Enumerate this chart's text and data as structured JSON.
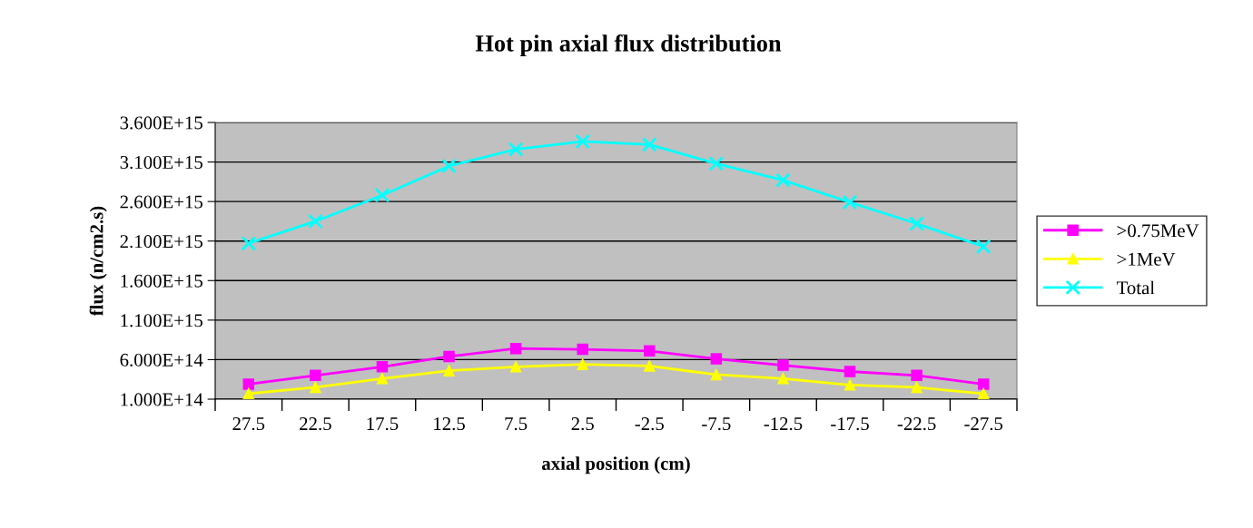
{
  "chart_data": {
    "type": "line",
    "title": "Hot pin axial flux distribution",
    "xlabel": "axial position (cm)",
    "ylabel": "flux (n/cm2.s)",
    "categories": [
      "27.5",
      "22.5",
      "17.5",
      "12.5",
      "7.5",
      "2.5",
      "-2.5",
      "-7.5",
      "-12.5",
      "-17.5",
      "-22.5",
      "-27.5"
    ],
    "series": [
      {
        "name": ">0.75MeV",
        "color": "#ff00ff",
        "marker": "square",
        "values": [
          290000000000000.0,
          400000000000000.0,
          510000000000000.0,
          640000000000000.0,
          740000000000000.0,
          730000000000000.0,
          710000000000000.0,
          610000000000000.0,
          530000000000000.0,
          450000000000000.0,
          400000000000000.0,
          290000000000000.0
        ]
      },
      {
        "name": ">1MeV",
        "color": "#ffff00",
        "marker": "triangle",
        "values": [
          170000000000000.0,
          250000000000000.0,
          360000000000000.0,
          460000000000000.0,
          510000000000000.0,
          540000000000000.0,
          520000000000000.0,
          410000000000000.0,
          360000000000000.0,
          280000000000000.0,
          250000000000000.0,
          170000000000000.0
        ]
      },
      {
        "name": "Total",
        "color": "#00ffff",
        "marker": "cross",
        "values": [
          2070000000000000.0,
          2350000000000000.0,
          2680000000000000.0,
          3050000000000000.0,
          3260000000000000.0,
          3360000000000000.0,
          3320000000000000.0,
          3080000000000000.0,
          2870000000000000.0,
          2590000000000000.0,
          2320000000000000.0,
          2030000000000000.0
        ]
      }
    ],
    "ylim": [
      100000000000000.0,
      3600000000000000.0
    ],
    "yticks": [
      {
        "value": 100000000000000.0,
        "label": "1.000E+14"
      },
      {
        "value": 600000000000000.0,
        "label": "6.000E+14"
      },
      {
        "value": 1100000000000000.0,
        "label": "1.100E+15"
      },
      {
        "value": 1600000000000000.0,
        "label": "1.600E+15"
      },
      {
        "value": 2100000000000000.0,
        "label": "2.100E+15"
      },
      {
        "value": 2600000000000000.0,
        "label": "2.600E+15"
      },
      {
        "value": 3100000000000000.0,
        "label": "3.100E+15"
      },
      {
        "value": 3600000000000000.0,
        "label": "3.600E+15"
      }
    ],
    "grid": "y",
    "legend": "right",
    "line_style": "solid"
  }
}
